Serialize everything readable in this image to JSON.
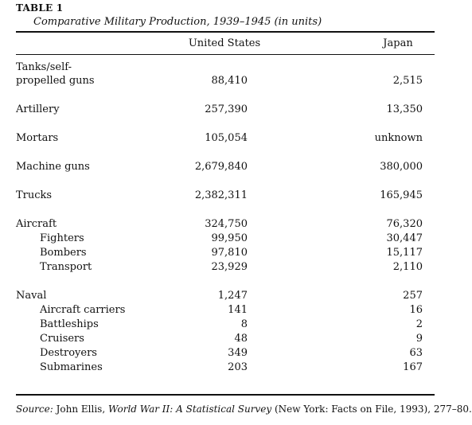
{
  "table": {
    "label": "TABLE 1",
    "caption": "Comparative Military Production, 1939–1945 (in units)",
    "columns": {
      "us": "United States",
      "japan": "Japan"
    },
    "rows": [
      {
        "label_line1": "Tanks/self-",
        "label_line2": "propelled guns",
        "us": "88,410",
        "japan": "2,515"
      },
      {
        "label": "Artillery",
        "us": "257,390",
        "japan": "13,350"
      },
      {
        "label": "Mortars",
        "us": "105,054",
        "japan": "unknown"
      },
      {
        "label": "Machine guns",
        "us": "2,679,840",
        "japan": "380,000"
      },
      {
        "label": "Trucks",
        "us": "2,382,311",
        "japan": "165,945"
      },
      {
        "label": "Aircraft",
        "us": "324,750",
        "japan": "76,320"
      },
      {
        "label": "Fighters",
        "us": "99,950",
        "japan": "30,447"
      },
      {
        "label": "Bombers",
        "us": "97,810",
        "japan": "15,117"
      },
      {
        "label": "Transport",
        "us": "23,929",
        "japan": "2,110"
      },
      {
        "label": "Naval",
        "us": "1,247",
        "japan": "257"
      },
      {
        "label": "Aircraft carriers",
        "us": "141",
        "japan": "16"
      },
      {
        "label": "Battleships",
        "us": "8",
        "japan": "2"
      },
      {
        "label": "Cruisers",
        "us": "48",
        "japan": "9"
      },
      {
        "label": "Destroyers",
        "us": "349",
        "japan": "63"
      },
      {
        "label": "Submarines",
        "us": "203",
        "japan": "167"
      }
    ]
  },
  "source": {
    "prefix": "Source:",
    "author": " John Ellis, ",
    "title": "World War II: A Statistical Survey",
    "rest": " (New York: Facts on File, 1993), 277–80."
  }
}
